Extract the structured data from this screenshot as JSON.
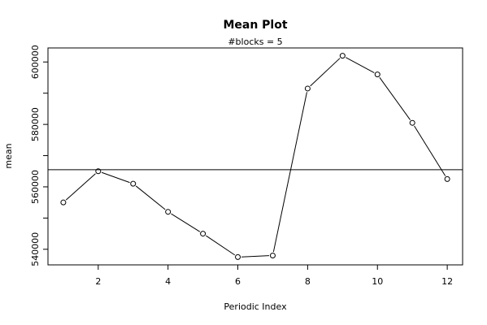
{
  "chart_data": {
    "type": "line",
    "title": "Mean Plot",
    "subtitle": "#blocks =  5",
    "xlabel": "Periodic Index",
    "ylabel": "mean",
    "x": [
      1,
      2,
      3,
      4,
      5,
      6,
      7,
      8,
      9,
      10,
      11,
      12
    ],
    "values": [
      555000,
      565000,
      561000,
      552000,
      545000,
      537500,
      538000,
      591500,
      602000,
      596000,
      580500,
      562500
    ],
    "reference_line": 565500,
    "xlim": [
      0.56,
      12.44
    ],
    "ylim": [
      535000,
      604500
    ],
    "xticks": [
      2,
      4,
      6,
      8,
      10,
      12
    ],
    "yticks": [
      540000,
      560000,
      580000,
      600000
    ],
    "yticks_minor": [
      550000,
      570000,
      590000
    ],
    "marker": "open-circle",
    "line_color": "#000000",
    "grid": false,
    "legend": "none"
  }
}
